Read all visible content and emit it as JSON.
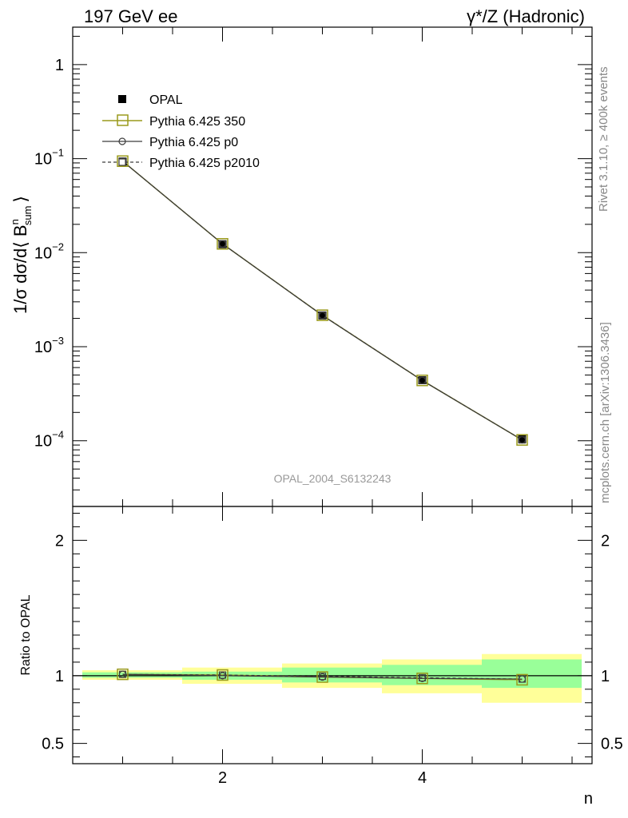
{
  "header": {
    "left_title": "197 GeV ee",
    "right_title": "γ*/Z (Hadronic)"
  },
  "side_labels": {
    "rivet": "Rivet 3.1.10, ≥ 400k events",
    "mcplots": "mcplots.cern.ch [arXiv:1306.3436]"
  },
  "watermark": "OPAL_2004_S6132243",
  "colors": {
    "data": "#000000",
    "p350": "#9a9a1c",
    "p0": "#3c3c3c",
    "p2010": "#3c3c3c",
    "band_outer": "#ffff99",
    "band_inner": "#99ff99"
  },
  "chart_data": [
    {
      "type": "line",
      "panel": "main",
      "ylabel": "1/σ dσ/d⟨ B",
      "ylabel_sup": "n",
      "ylabel_sub": "sum",
      "ylabel_tail": "⟩",
      "yscale": "log",
      "ylim": [
        2e-05,
        2.5
      ],
      "xlim": [
        0.5,
        5.7
      ],
      "y_tick_labels": [
        {
          "value": 1,
          "base": "1",
          "exp": ""
        },
        {
          "value": 0.1,
          "base": "10",
          "exp": "−1"
        },
        {
          "value": 0.01,
          "base": "10",
          "exp": "−2"
        },
        {
          "value": 0.001,
          "base": "10",
          "exp": "−3"
        },
        {
          "value": 0.0001,
          "base": "10",
          "exp": "−4"
        }
      ],
      "legend_position": "top-left",
      "x": [
        1,
        2,
        3,
        4,
        5
      ],
      "series": [
        {
          "name": "OPAL",
          "marker": "filled-square",
          "values": [
            0.093,
            0.0123,
            0.00215,
            0.00044,
            0.000104
          ]
        },
        {
          "name": "Pythia 6.425 350",
          "marker": "open-square",
          "line": "solid",
          "values": [
            0.094,
            0.0124,
            0.00216,
            0.000438,
            0.000102
          ]
        },
        {
          "name": "Pythia 6.425 p0",
          "marker": "open-circle",
          "line": "solid",
          "values": [
            0.094,
            0.0124,
            0.00215,
            0.000437,
            0.000102
          ]
        },
        {
          "name": "Pythia 6.425 p2010",
          "marker": "open-square-small",
          "line": "dashed",
          "values": [
            0.094,
            0.0124,
            0.00216,
            0.000438,
            0.000102
          ]
        }
      ]
    },
    {
      "type": "line",
      "panel": "ratio",
      "ylabel": "Ratio to OPAL",
      "xlabel": "n",
      "ylim": [
        0.35,
        2.25
      ],
      "xlim": [
        0.5,
        5.7
      ],
      "y_tick_labels": [
        "0.5",
        "1",
        "2"
      ],
      "x_tick_labels": [
        "2",
        "4"
      ],
      "bins": [
        [
          0.5,
          1.5
        ],
        [
          1.5,
          2.5
        ],
        [
          2.5,
          3.5
        ],
        [
          3.5,
          4.5
        ],
        [
          4.5,
          5.5
        ]
      ],
      "band_outer": [
        [
          0.97,
          1.04
        ],
        [
          0.94,
          1.06
        ],
        [
          0.91,
          1.09
        ],
        [
          0.87,
          1.12
        ],
        [
          0.8,
          1.16
        ]
      ],
      "band_inner": [
        [
          0.985,
          1.025
        ],
        [
          0.97,
          1.03
        ],
        [
          0.95,
          1.06
        ],
        [
          0.93,
          1.08
        ],
        [
          0.91,
          1.12
        ]
      ],
      "x": [
        1,
        2,
        3,
        4,
        5
      ],
      "series": [
        {
          "name": "Pythia 6.425 350",
          "values": [
            1.01,
            1.005,
            0.99,
            0.98,
            0.97
          ]
        },
        {
          "name": "Pythia 6.425 p0",
          "values": [
            1.01,
            1.0,
            0.99,
            0.98,
            0.975
          ]
        },
        {
          "name": "Pythia 6.425 p2010",
          "values": [
            1.01,
            1.005,
            0.995,
            0.985,
            0.975
          ]
        }
      ]
    }
  ]
}
